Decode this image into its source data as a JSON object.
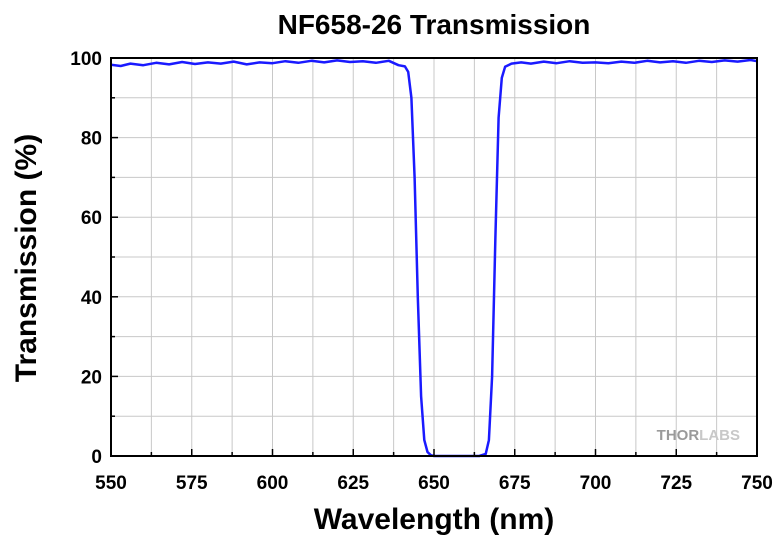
{
  "chart_data": {
    "type": "line",
    "title": "NF658-26 Transmission",
    "xlabel": "Wavelength (nm)",
    "ylabel": "Transmission (%)",
    "xlim": [
      550,
      750
    ],
    "ylim": [
      0,
      100
    ],
    "xticks": [
      550,
      575,
      600,
      625,
      650,
      675,
      700,
      725,
      750
    ],
    "yticks": [
      0,
      20,
      40,
      60,
      80,
      100
    ],
    "grid": true,
    "series": [
      {
        "color": "#1a1aff",
        "x": [
          550,
          553,
          556,
          560,
          564,
          568,
          572,
          576,
          580,
          584,
          588,
          592,
          596,
          600,
          604,
          608,
          612,
          616,
          620,
          624,
          628,
          632,
          636,
          639,
          641,
          642,
          643,
          644,
          645,
          646,
          647,
          648,
          649,
          650,
          652,
          655,
          658,
          661,
          664,
          666,
          667,
          668,
          669,
          670,
          671,
          672,
          674,
          677,
          680,
          684,
          688,
          692,
          696,
          700,
          704,
          708,
          712,
          716,
          720,
          724,
          728,
          732,
          736,
          740,
          744,
          748,
          750
        ],
        "values": [
          98.3,
          98.0,
          98.6,
          98.2,
          98.8,
          98.4,
          99.0,
          98.5,
          98.9,
          98.6,
          99.1,
          98.4,
          98.9,
          98.7,
          99.2,
          98.8,
          99.3,
          98.9,
          99.4,
          99.0,
          99.2,
          98.8,
          99.3,
          98.2,
          97.9,
          96.5,
          90.0,
          70.0,
          40.0,
          15.0,
          4.0,
          1.0,
          0.2,
          0.0,
          0.0,
          0.0,
          0.0,
          0.0,
          0.0,
          0.5,
          4.0,
          20.0,
          55.0,
          85.0,
          95.0,
          97.8,
          98.6,
          98.9,
          98.6,
          99.1,
          98.7,
          99.2,
          98.8,
          98.9,
          98.7,
          99.1,
          98.8,
          99.3,
          98.9,
          99.2,
          98.8,
          99.3,
          99.0,
          99.4,
          99.1,
          99.5,
          99.2
        ]
      }
    ]
  },
  "watermark": {
    "part1": "THOR",
    "part2": "LABS"
  },
  "colors": {
    "line": "#1a1aff",
    "grid": "#c8c8c8",
    "axis": "#000000"
  }
}
